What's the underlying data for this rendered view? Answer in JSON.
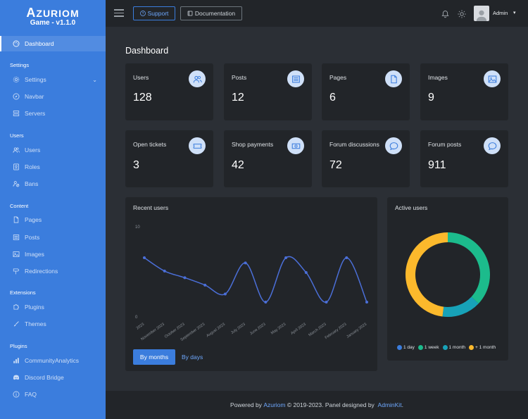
{
  "brand": {
    "logo_first": "A",
    "logo_rest": "ZURIOM",
    "subtitle": "Game - v1.1.0"
  },
  "sidebar": {
    "active": {
      "label": "Dashboard",
      "icon": "palette-icon"
    },
    "sections": [
      {
        "header": "Settings",
        "items": [
          {
            "label": "Settings",
            "icon": "gear-icon",
            "has_caret": true
          },
          {
            "label": "Navbar",
            "icon": "compass-icon"
          },
          {
            "label": "Servers",
            "icon": "server-icon"
          }
        ]
      },
      {
        "header": "Users",
        "items": [
          {
            "label": "Users",
            "icon": "users-icon"
          },
          {
            "label": "Roles",
            "icon": "id-card-icon"
          },
          {
            "label": "Bans",
            "icon": "user-ban-icon"
          }
        ]
      },
      {
        "header": "Content",
        "items": [
          {
            "label": "Pages",
            "icon": "file-icon"
          },
          {
            "label": "Posts",
            "icon": "newspaper-icon"
          },
          {
            "label": "Images",
            "icon": "image-icon"
          },
          {
            "label": "Redirections",
            "icon": "signpost-icon"
          }
        ]
      },
      {
        "header": "Extensions",
        "items": [
          {
            "label": "Plugins",
            "icon": "puzzle-icon"
          },
          {
            "label": "Themes",
            "icon": "brush-icon"
          }
        ]
      },
      {
        "header": "Plugins",
        "items": [
          {
            "label": "CommunityAnalytics",
            "icon": "bar-chart-icon"
          },
          {
            "label": "Discord Bridge",
            "icon": "discord-icon"
          },
          {
            "label": "FAQ",
            "icon": "info-circle-icon"
          }
        ]
      }
    ]
  },
  "topbar": {
    "support_label": "Support",
    "docs_label": "Documentation",
    "user_name": "Admin"
  },
  "page_title": "Dashboard",
  "stats": [
    {
      "label": "Users",
      "value": "128",
      "icon": "users-icon"
    },
    {
      "label": "Posts",
      "value": "12",
      "icon": "newspaper-icon"
    },
    {
      "label": "Pages",
      "value": "6",
      "icon": "file-icon"
    },
    {
      "label": "Images",
      "value": "9",
      "icon": "image-icon"
    },
    {
      "label": "Open tickets",
      "value": "3",
      "icon": "ticket-icon"
    },
    {
      "label": "Shop payments",
      "value": "42",
      "icon": "money-icon"
    },
    {
      "label": "Forum discussions",
      "value": "72",
      "icon": "chat-icon"
    },
    {
      "label": "Forum posts",
      "value": "911",
      "icon": "chat-icon"
    }
  ],
  "recent_users": {
    "title": "Recent users",
    "btn_months": "By months",
    "btn_days": "By days"
  },
  "active_users": {
    "title": "Active users"
  },
  "footer": {
    "prefix": "Powered by ",
    "link1": "Azuriom",
    "middle": " © 2019-2023. Panel designed by ",
    "link2": "AdminKit",
    "suffix": "."
  },
  "chart_data": [
    {
      "type": "line",
      "x": [
        "2023",
        "November 2023",
        "October 2023",
        "September 2023",
        "August 2023",
        "July 2023",
        "June 2023",
        "May 2023",
        "April 2023",
        "March 2023",
        "February 2023",
        "January 2023"
      ],
      "series": [
        {
          "values": [
            8,
            6.2,
            5.3,
            4.3,
            3.1,
            7.3,
            2,
            8,
            6,
            2,
            8,
            2
          ],
          "color": "#4b6fd8"
        }
      ],
      "ylim": [
        0,
        10
      ],
      "yticks": [
        "0",
        "10"
      ],
      "grid": false,
      "title": "Recent users"
    },
    {
      "type": "pie",
      "donut": true,
      "categories": [
        "1 day",
        "1 week",
        "1 month",
        "+ 1 month"
      ],
      "values": [
        0,
        37,
        15,
        48
      ],
      "colors": [
        "#3b7ddd",
        "#1cbb8c",
        "#17a2b8",
        "#fcb92c"
      ],
      "legend": "bottom",
      "title": "Active users"
    }
  ]
}
